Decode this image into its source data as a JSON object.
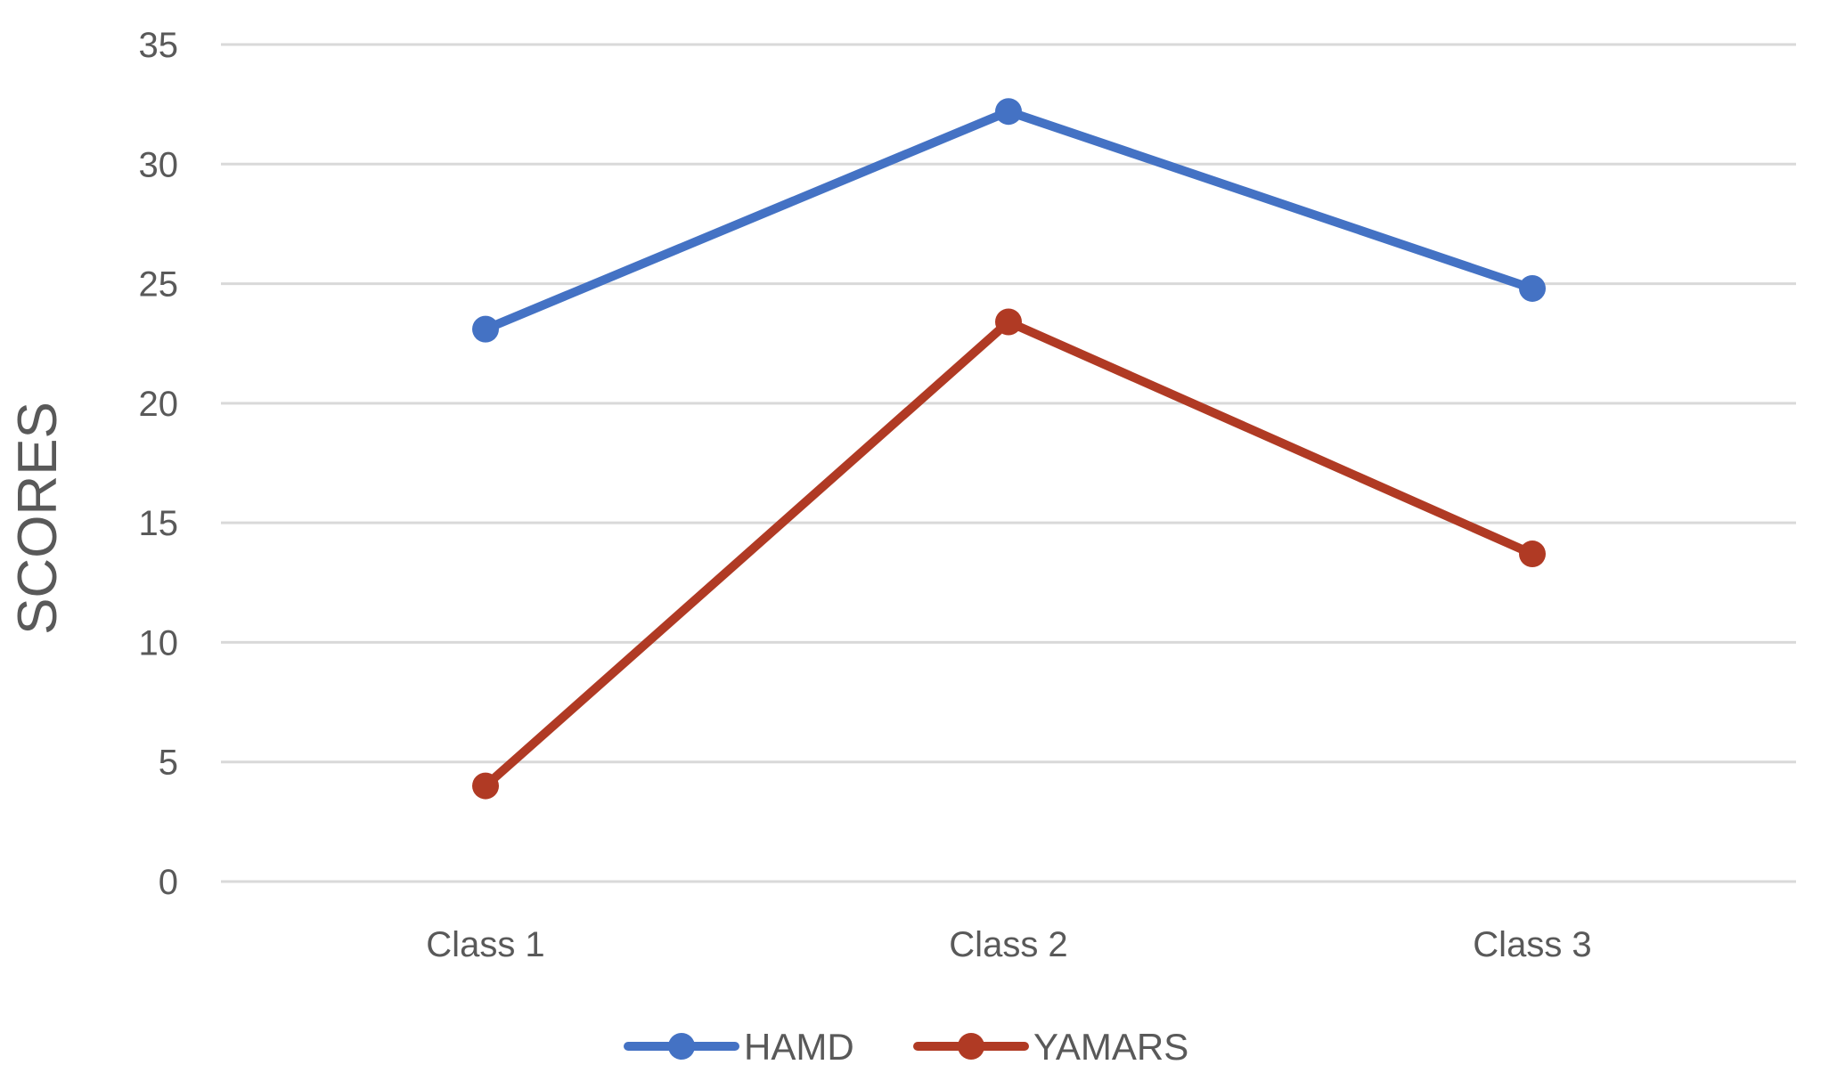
{
  "chart_data": {
    "type": "line",
    "title": "",
    "xlabel": "",
    "ylabel": "SCORES",
    "categories": [
      "Class 1",
      "Class 2",
      "Class 3"
    ],
    "ylim": [
      0,
      35
    ],
    "yticks": [
      0,
      5,
      10,
      15,
      20,
      25,
      30,
      35
    ],
    "grid": true,
    "legend_position": "bottom",
    "series": [
      {
        "name": "HAMD",
        "values": [
          23.1,
          32.2,
          24.8
        ],
        "color": "#4472c4"
      },
      {
        "name": "YAMARS",
        "values": [
          4.0,
          23.4,
          13.7
        ],
        "color": "#b03a24"
      }
    ]
  }
}
